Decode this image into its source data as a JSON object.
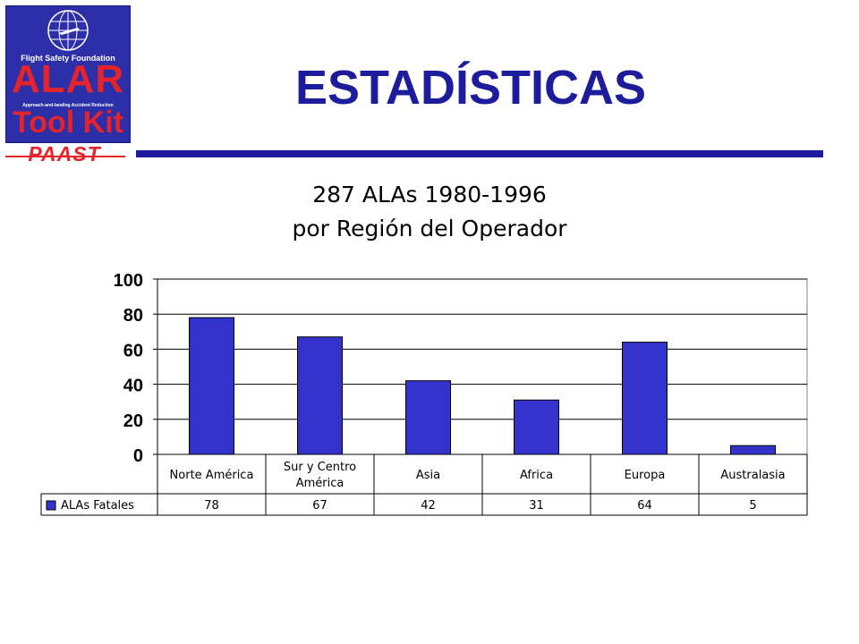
{
  "header": {
    "title": "ESTADÍSTICAS",
    "logo": {
      "org": "Flight Safety Foundation",
      "program": "ALAR",
      "subtitle": "Approach-and-landing Accident Reduction",
      "product": "Tool Kit",
      "icon": "globe-airplane-icon"
    },
    "badge": "PAAST",
    "accent_color": "#1c1c9c",
    "brand_red": "#e4232b"
  },
  "chart_data": {
    "type": "bar",
    "title_lines": [
      "287 ALAs 1980-1996",
      "por Región del Operador"
    ],
    "categories": [
      [
        "Norte América"
      ],
      [
        "Sur y Centro",
        "América"
      ],
      [
        "Asia"
      ],
      [
        "Africa"
      ],
      [
        "Europa"
      ],
      [
        "Australasia"
      ]
    ],
    "series": [
      {
        "name": "ALAs Fatales",
        "values": [
          78,
          67,
          42,
          31,
          64,
          5
        ],
        "color": "#3333cc"
      }
    ],
    "ylim": [
      0,
      100
    ],
    "yticks": [
      0,
      20,
      40,
      60,
      80,
      100
    ],
    "grid": true,
    "legend": "data-table-left"
  }
}
